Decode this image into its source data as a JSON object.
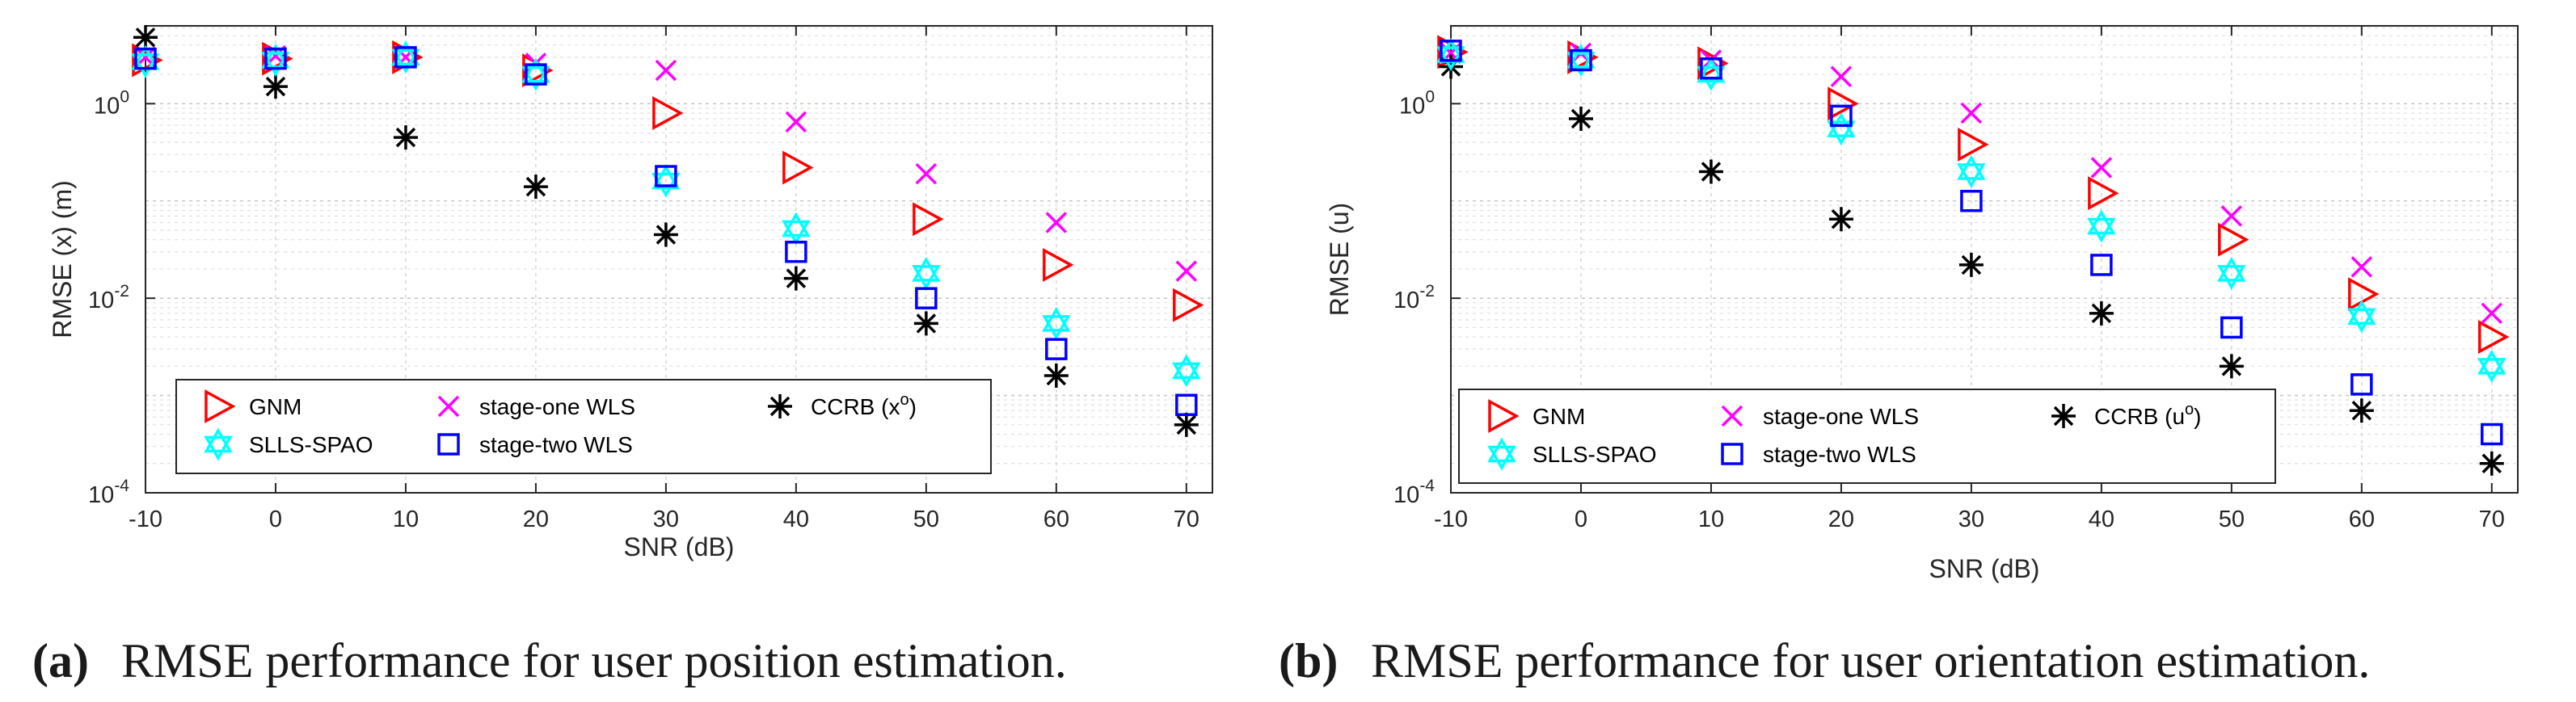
{
  "chart_data": [
    {
      "type": "scatter",
      "id": "a",
      "caption_tag": "(a)",
      "caption_text": "RMSE performance for user position estimation.",
      "xlabel": "SNR (dB)",
      "ylabel": "RMSE (x) (m)",
      "x": [
        -10,
        0,
        10,
        20,
        30,
        40,
        50,
        60,
        70
      ],
      "xlim": [
        -10,
        72
      ],
      "ylim_log10": [
        -4,
        0.8
      ],
      "yscale": "log",
      "grid": true,
      "x_ticks": [
        "-10",
        "0",
        "10",
        "20",
        "30",
        "40",
        "50",
        "60",
        "70"
      ],
      "y_ticks": [
        {
          "base": "10",
          "exp": "-4",
          "v": -4
        },
        {
          "base": "10",
          "exp": "-2",
          "v": -2
        },
        {
          "base": "10",
          "exp": "0",
          "v": 0
        }
      ],
      "legend_position": "bottom",
      "series": [
        {
          "name": "GNM",
          "marker": "triangle-right",
          "color": "#ff0000",
          "values": [
            2.8,
            2.9,
            3.0,
            2.2,
            0.8,
            0.22,
            0.065,
            0.022,
            0.0085
          ]
        },
        {
          "name": "stage-one WLS",
          "marker": "x",
          "color": "#ff00ff",
          "values": [
            3.0,
            3.1,
            3.0,
            2.6,
            2.2,
            0.65,
            0.19,
            0.06,
            0.019
          ]
        },
        {
          "name": "CCRB (x",
          "name_sup": "o",
          "name_end": ")",
          "marker": "asterisk",
          "color": "#000000",
          "values": [
            4.8,
            1.5,
            0.45,
            0.14,
            0.045,
            0.016,
            0.0055,
            0.0016,
            0.0005
          ]
        },
        {
          "name": "SLLS-SPAO",
          "marker": "hexagram",
          "color": "#00ffff",
          "values": [
            2.7,
            2.8,
            3.0,
            2.0,
            0.16,
            0.052,
            0.018,
            0.0055,
            0.0018
          ]
        },
        {
          "name": "stage-two WLS",
          "marker": "square",
          "color": "#0000ff",
          "values": [
            2.9,
            2.9,
            3.0,
            2.0,
            0.18,
            0.03,
            0.01,
            0.003,
            0.0008
          ]
        }
      ]
    },
    {
      "type": "scatter",
      "id": "b",
      "caption_tag": "(b)",
      "caption_text": "RMSE performance for user orientation estimation.",
      "xlabel": "SNR (dB)",
      "ylabel": "RMSE (u)",
      "x": [
        -10,
        0,
        10,
        20,
        30,
        40,
        50,
        60,
        70
      ],
      "xlim": [
        -10,
        72
      ],
      "ylim_log10": [
        -4,
        0.8
      ],
      "yscale": "log",
      "grid": true,
      "x_ticks": [
        "-10",
        "0",
        "10",
        "20",
        "30",
        "40",
        "50",
        "60",
        "70"
      ],
      "y_ticks": [
        {
          "base": "10",
          "exp": "-4",
          "v": -4
        },
        {
          "base": "10",
          "exp": "-2",
          "v": -2
        },
        {
          "base": "10",
          "exp": "0",
          "v": 0
        }
      ],
      "legend_position": "bottom",
      "series": [
        {
          "name": "GNM",
          "marker": "triangle-right",
          "color": "#ff0000",
          "values": [
            3.4,
            3.0,
            2.6,
            1.0,
            0.38,
            0.12,
            0.04,
            0.011,
            0.004
          ]
        },
        {
          "name": "stage-one WLS",
          "marker": "x",
          "color": "#ff00ff",
          "values": [
            3.3,
            3.3,
            2.8,
            1.9,
            0.8,
            0.22,
            0.07,
            0.021,
            0.007
          ]
        },
        {
          "name": "CCRB (u",
          "name_sup": "o",
          "name_end": ")",
          "marker": "asterisk",
          "color": "#000000",
          "values": [
            2.4,
            0.7,
            0.2,
            0.065,
            0.022,
            0.007,
            0.002,
            0.0007,
            0.0002
          ]
        },
        {
          "name": "SLLS-SPAO",
          "marker": "hexagram",
          "color": "#00ffff",
          "values": [
            3.2,
            2.8,
            2.0,
            0.55,
            0.2,
            0.055,
            0.018,
            0.0065,
            0.002
          ]
        },
        {
          "name": "stage-two WLS",
          "marker": "square",
          "color": "#0000ff",
          "values": [
            3.5,
            2.8,
            2.3,
            0.75,
            0.1,
            0.022,
            0.005,
            0.0013,
            0.0004
          ]
        }
      ]
    }
  ]
}
